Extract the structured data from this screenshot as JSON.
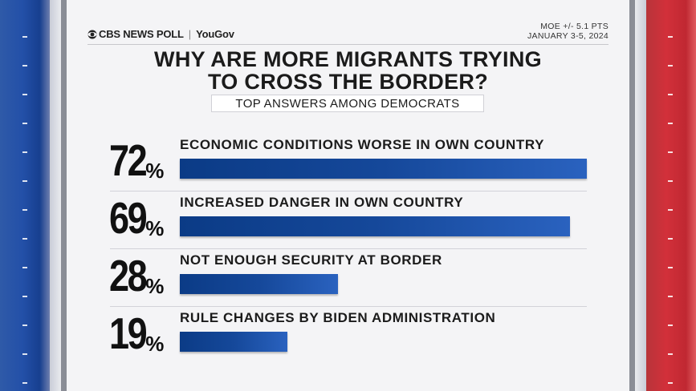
{
  "header": {
    "logo_cbs": "CBS NEWS POLL",
    "logo_yougov": "YouGov",
    "moe": "MOE +/- 5.1 PTS",
    "date": "JANUARY 3-5, 2024"
  },
  "colors": {
    "bar": "#15489a",
    "left_stripe": "#2350a8",
    "right_stripe": "#d2303a"
  },
  "chart_data": {
    "type": "bar",
    "orientation": "horizontal",
    "title": "WHY ARE MORE MIGRANTS TRYING TO CROSS THE BORDER?",
    "subtitle": "TOP ANSWERS AMONG DEMOCRATS",
    "categories": [
      "ECONOMIC CONDITIONS WORSE IN OWN COUNTRY",
      "INCREASED DANGER IN OWN COUNTRY",
      "NOT ENOUGH SECURITY AT BORDER",
      "RULE CHANGES BY BIDEN ADMINISTRATION"
    ],
    "values": [
      72,
      69,
      28,
      19
    ],
    "value_labels": [
      "72",
      "69",
      "28",
      "19"
    ],
    "unit": "%",
    "xlim": [
      0,
      72
    ]
  }
}
